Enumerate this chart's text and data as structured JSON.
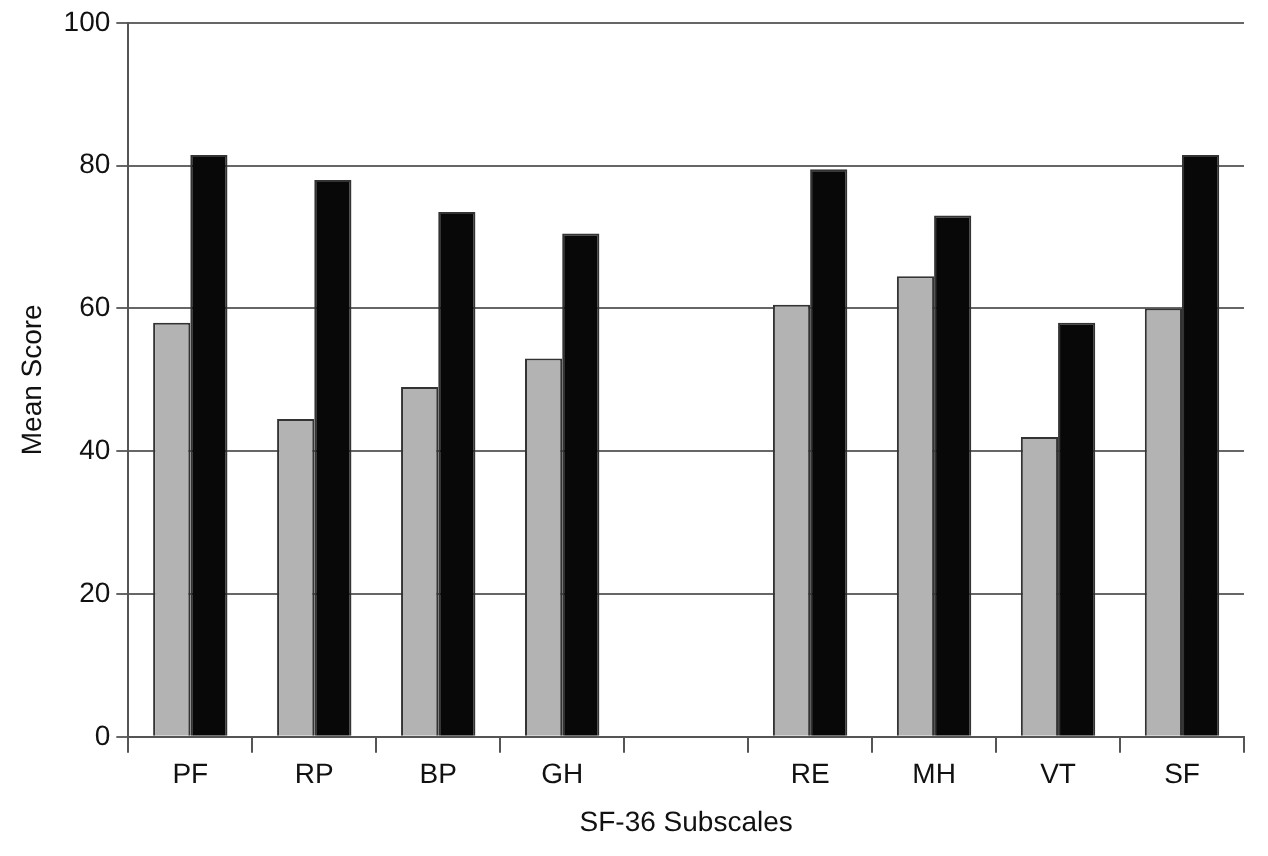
{
  "chart_data": {
    "type": "bar",
    "xlabel": "SF-36 Subscales",
    "ylabel": "Mean Score",
    "categories": [
      "PF",
      "RP",
      "BP",
      "GH",
      null,
      "RE",
      "MH",
      "VT",
      "SF"
    ],
    "series": [
      {
        "color": "#b3b3b3",
        "values": [
          58,
          44.5,
          49,
          53,
          null,
          60.5,
          64.5,
          42,
          60
        ]
      },
      {
        "color": "#080808",
        "values": [
          81.5,
          78,
          73.5,
          70.5,
          null,
          79.5,
          73,
          58,
          81.5
        ]
      }
    ],
    "ylim": [
      0,
      100
    ],
    "yticks": [
      0,
      20,
      40,
      60,
      80,
      100
    ],
    "grid": "y"
  }
}
